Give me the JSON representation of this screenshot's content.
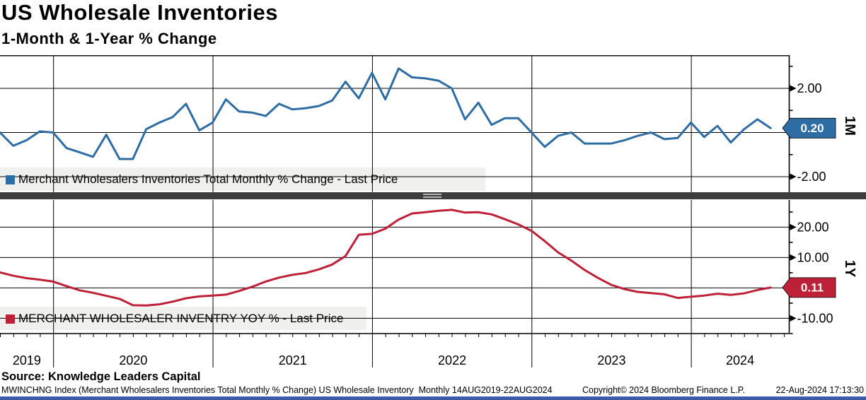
{
  "header": {
    "title": "US Wholesale Inventories",
    "subtitle": "1-Month & 1-Year % Change"
  },
  "x_axis": {
    "years": [
      "2019",
      "2020",
      "2021",
      "2022",
      "2023",
      "2024"
    ],
    "period": "Monthly",
    "range_label": "14AUG2019-22AUG2024"
  },
  "colors": {
    "blue_series": "#2e6da4",
    "red_series": "#bd2138",
    "grid": "#000000",
    "legend_background": "#f0f0ee",
    "separator": "#3d3d3d",
    "bottom_bar": "#3c5caa"
  },
  "chart_data": [
    {
      "type": "line",
      "panel": "top",
      "name": "Merchant Wholesalers Inventories Total Monthly % Change - Last Price",
      "axis_label": "1M",
      "color": "#2e6da4",
      "last_price_label": "0.20",
      "last_value": 0.2,
      "frequency": "monthly",
      "x_start": "Aug-2019",
      "x_end": "Jun-2024",
      "ylim": [
        -2.9,
        3.5
      ],
      "legend_position": "bottom-left",
      "grid": true,
      "y_ticks": [
        {
          "value": 2,
          "label": "2.00"
        },
        {
          "value": -2,
          "label": "-2.00"
        }
      ],
      "values": [
        0.0,
        -0.6,
        -0.35,
        0.05,
        0.0,
        -0.7,
        -0.9,
        -1.1,
        -0.1,
        -1.2,
        -1.2,
        0.15,
        0.45,
        0.7,
        1.3,
        0.1,
        0.45,
        1.5,
        0.95,
        0.9,
        0.75,
        1.3,
        1.05,
        1.1,
        1.2,
        1.45,
        2.3,
        1.55,
        2.7,
        1.5,
        2.9,
        2.5,
        2.45,
        2.35,
        2.0,
        0.6,
        1.35,
        0.35,
        0.65,
        0.65,
        0.0,
        -0.65,
        -0.15,
        0.0,
        -0.5,
        -0.5,
        -0.5,
        -0.35,
        -0.15,
        0.0,
        -0.3,
        -0.25,
        0.45,
        -0.2,
        0.3,
        -0.45,
        0.15,
        0.6,
        0.2
      ]
    },
    {
      "type": "line",
      "panel": "bottom",
      "name": "MERCHANT WHOLESALER INVENTRY YOY % - Last Price",
      "axis_label": "1Y",
      "color": "#bd2138",
      "last_price_label": "0.11",
      "last_value": 0.11,
      "frequency": "monthly",
      "x_start": "Aug-2019",
      "x_end": "Jun-2024",
      "ylim": [
        -18.5,
        30
      ],
      "legend_position": "bottom-left",
      "grid": true,
      "y_ticks": [
        {
          "value": 20,
          "label": "20.00"
        },
        {
          "value": 10,
          "label": "10.00"
        },
        {
          "value": -10,
          "label": "-10.00"
        }
      ],
      "values": [
        5.1,
        4.0,
        3.2,
        2.7,
        2.1,
        0.6,
        -0.8,
        -1.6,
        -2.6,
        -3.6,
        -5.7,
        -5.8,
        -5.4,
        -4.5,
        -3.4,
        -2.8,
        -2.5,
        -2.2,
        -1.0,
        0.4,
        2.1,
        3.4,
        4.3,
        4.9,
        6.1,
        7.7,
        10.5,
        17.5,
        17.8,
        19.5,
        22.5,
        24.5,
        24.9,
        25.4,
        25.7,
        24.8,
        24.9,
        24.2,
        22.6,
        20.9,
        18.8,
        15.4,
        11.7,
        9.0,
        5.9,
        3.3,
        1.0,
        -0.4,
        -1.3,
        -1.7,
        -2.1,
        -3.3,
        -2.9,
        -2.5,
        -1.9,
        -2.3,
        -1.8,
        -0.7,
        0.11
      ]
    }
  ],
  "source_line": "Source: Knowledge Leaders Capital",
  "footer": {
    "instrument": "MWINCHNG Index (Merchant Wholesalers Inventories Total Monthly % Change) US Wholesale Inventory  Monthly 14AUG2019-22AUG2024",
    "copyright": "Copyright© 2024 Bloomberg Finance L.P.",
    "timestamp": "22-Aug-2024 17:13:30"
  }
}
